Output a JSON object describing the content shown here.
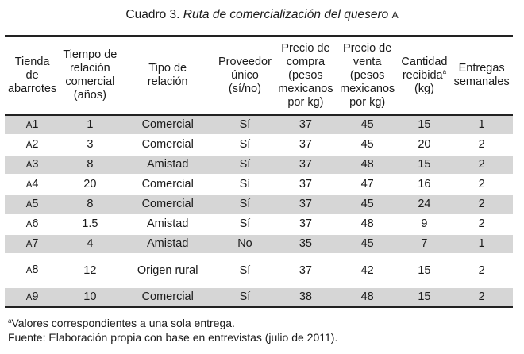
{
  "title": {
    "prefix": "Cuadro 3.",
    "italic": "Ruta de comercialización del quesero",
    "letter": "A"
  },
  "headers": [
    [
      "Tienda",
      "de",
      "abarrotes"
    ],
    [
      "Tiempo de",
      "relación",
      "comercial",
      "(años)"
    ],
    [
      "Tipo de",
      "relación"
    ],
    [
      "Proveedor",
      "único",
      "(sí/no)"
    ],
    [
      "Precio de",
      "compra",
      "(pesos",
      "mexicanos",
      "por kg)"
    ],
    [
      "Precio de",
      "venta",
      "(pesos",
      "mexicanos",
      "por kg)"
    ],
    [
      "Cantidad",
      "recibida",
      "(kg)"
    ],
    [
      "Entregas",
      "semanales"
    ]
  ],
  "header_footnote_mark": "a",
  "rows": [
    {
      "store_prefix": "A",
      "store_num": "1",
      "years": "1",
      "type": "Comercial",
      "single": "Sí",
      "buy": "37",
      "sell": "45",
      "qty": "15",
      "deliveries": "1"
    },
    {
      "store_prefix": "A",
      "store_num": "2",
      "years": "3",
      "type": "Comercial",
      "single": "Sí",
      "buy": "37",
      "sell": "45",
      "qty": "20",
      "deliveries": "2"
    },
    {
      "store_prefix": "A",
      "store_num": "3",
      "years": "8",
      "type": "Amistad",
      "single": "Sí",
      "buy": "37",
      "sell": "48",
      "qty": "15",
      "deliveries": "2"
    },
    {
      "store_prefix": "A",
      "store_num": "4",
      "years": "20",
      "type": "Comercial",
      "single": "Sí",
      "buy": "37",
      "sell": "47",
      "qty": "16",
      "deliveries": "2"
    },
    {
      "store_prefix": "A",
      "store_num": "5",
      "years": "8",
      "type": "Comercial",
      "single": "Sí",
      "buy": "37",
      "sell": "45",
      "qty": "24",
      "deliveries": "2"
    },
    {
      "store_prefix": "A",
      "store_num": "6",
      "years": "1.5",
      "type": "Amistad",
      "single": "Sí",
      "buy": "37",
      "sell": "48",
      "qty": "9",
      "deliveries": "2"
    },
    {
      "store_prefix": "A",
      "store_num": "7",
      "years": "4",
      "type": "Amistad",
      "single": "No",
      "buy": "35",
      "sell": "45",
      "qty": "7",
      "deliveries": "1"
    },
    {
      "store_prefix": "A",
      "store_num": "8",
      "years": "12",
      "type": "Origen rural",
      "single": "Sí",
      "buy": "37",
      "sell": "42",
      "qty": "15",
      "deliveries": "2"
    },
    {
      "store_prefix": "A",
      "store_num": "9",
      "years": "10",
      "type": "Comercial",
      "single": "Sí",
      "buy": "38",
      "sell": "48",
      "qty": "15",
      "deliveries": "2"
    }
  ],
  "notes": {
    "mark": "a",
    "footnote": "Valores correspondientes a una sola entrega.",
    "source": "Fuente: Elaboración propia con base en entrevistas (julio de 2011)."
  }
}
